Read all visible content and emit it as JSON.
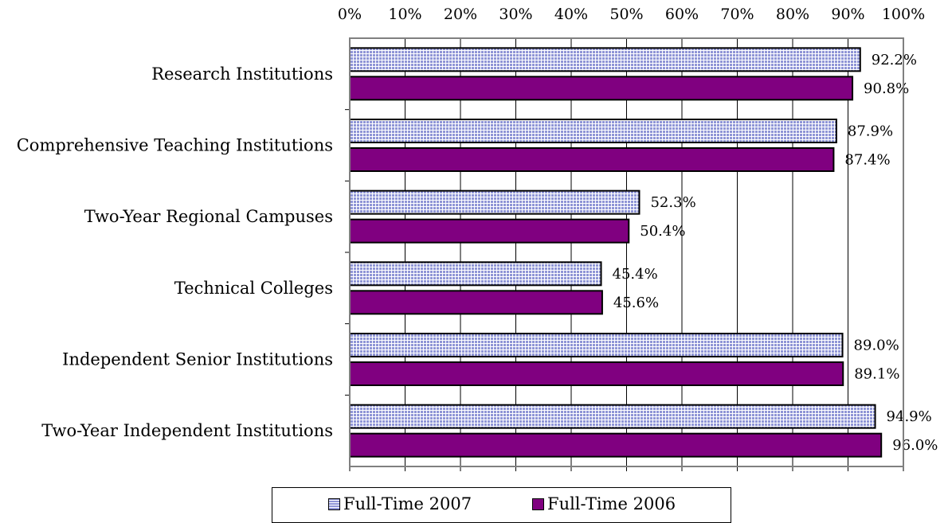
{
  "chart_data": {
    "type": "bar",
    "orientation": "horizontal",
    "categories": [
      "Research Institutions",
      "Comprehensive Teaching Institutions",
      "Two-Year Regional Campuses",
      "Technical Colleges",
      "Independent Senior Institutions",
      "Two-Year Independent Institutions"
    ],
    "series": [
      {
        "name": "Full-Time 2007",
        "values": [
          92.2,
          87.9,
          52.3,
          45.4,
          89.0,
          94.9
        ],
        "labels": [
          "92.2%",
          "87.9%",
          "52.3%",
          "45.4%",
          "89.0%",
          "94.9%"
        ],
        "color": "#c8cdf0",
        "pattern": "grid"
      },
      {
        "name": "Full-Time 2006",
        "values": [
          90.8,
          87.4,
          50.4,
          45.6,
          89.1,
          96.0
        ],
        "labels": [
          "90.8%",
          "87.4%",
          "50.4%",
          "45.6%",
          "89.1%",
          "96.0%"
        ],
        "color": "#800080",
        "pattern": "solid"
      }
    ],
    "xlim": [
      0,
      100
    ],
    "xticks": [
      "0%",
      "10%",
      "20%",
      "30%",
      "40%",
      "50%",
      "60%",
      "70%",
      "80%",
      "90%",
      "100%"
    ],
    "x_axis_position": "top",
    "grid": true,
    "legend_position": "bottom"
  }
}
